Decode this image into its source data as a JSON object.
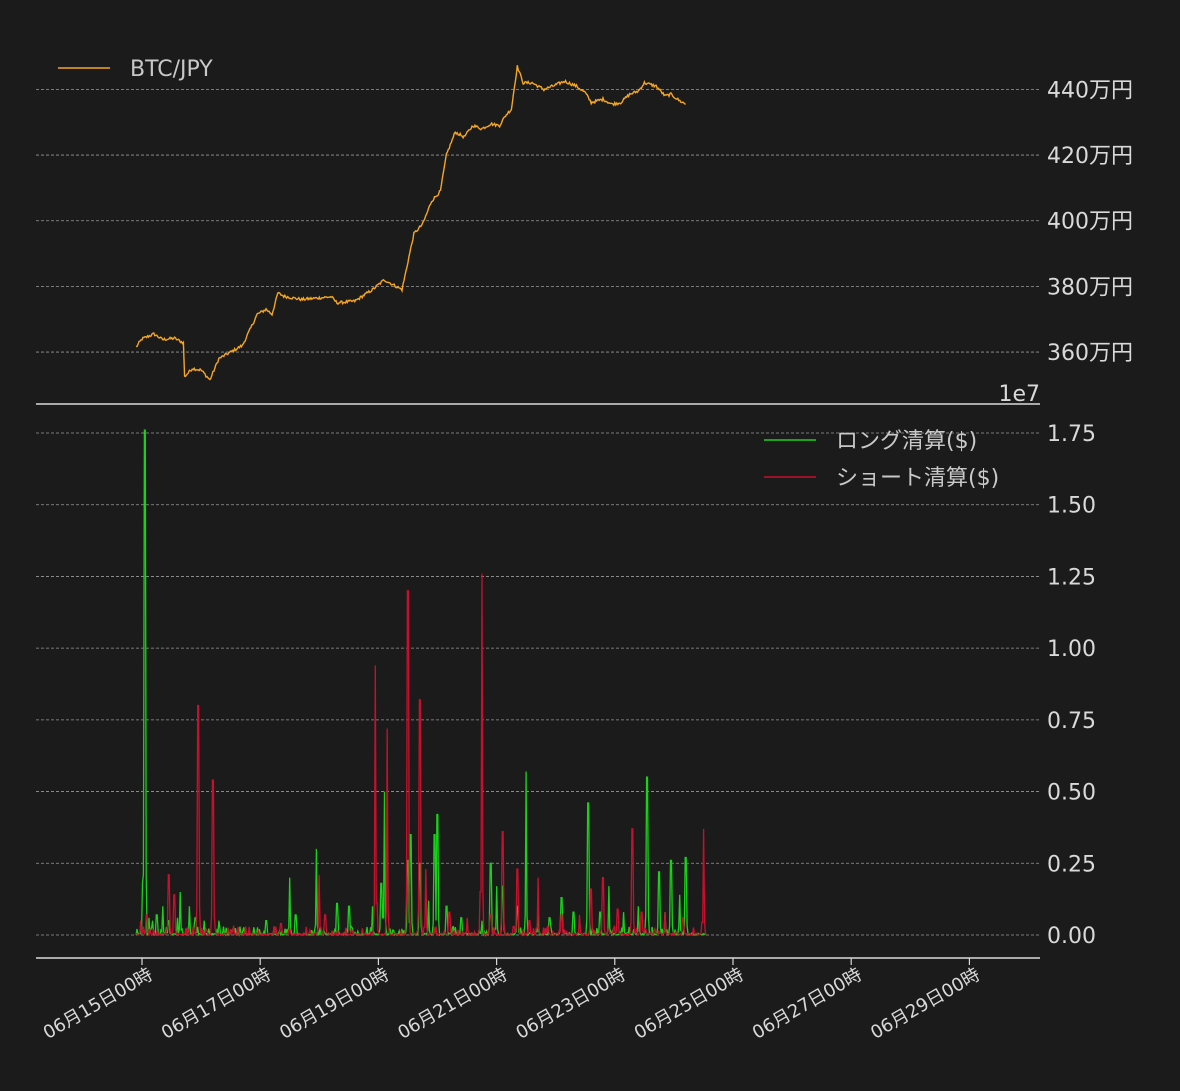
{
  "chart_data": [
    {
      "type": "line",
      "panel": "price",
      "series": [
        {
          "name": "BTC/JPY",
          "color": "#f5a623"
        }
      ],
      "ytick_labels": [
        "360万円",
        "380万円",
        "400万円",
        "420万円",
        "440万円"
      ],
      "yticks": [
        3600000,
        3800000,
        4000000,
        4200000,
        4400000
      ],
      "ylim": [
        3460000,
        4520000
      ],
      "legend_position": "top-left",
      "grid": true,
      "price_anchors": [
        [
          -0.1,
          3615000
        ],
        [
          0.0,
          3640000
        ],
        [
          0.2,
          3655000
        ],
        [
          0.35,
          3638000
        ],
        [
          0.55,
          3642000
        ],
        [
          0.7,
          3628000
        ],
        [
          0.72,
          3525000
        ],
        [
          0.85,
          3550000
        ],
        [
          1.0,
          3545000
        ],
        [
          1.15,
          3515000
        ],
        [
          1.3,
          3580000
        ],
        [
          1.5,
          3600000
        ],
        [
          1.7,
          3620000
        ],
        [
          1.95,
          3715000
        ],
        [
          2.1,
          3730000
        ],
        [
          2.2,
          3715000
        ],
        [
          2.3,
          3780000
        ],
        [
          2.4,
          3770000
        ],
        [
          2.7,
          3760000
        ],
        [
          3.0,
          3765000
        ],
        [
          3.2,
          3768000
        ],
        [
          3.3,
          3750000
        ],
        [
          3.6,
          3755000
        ],
        [
          3.9,
          3790000
        ],
        [
          4.1,
          3820000
        ],
        [
          4.25,
          3805000
        ],
        [
          4.4,
          3790000
        ],
        [
          4.6,
          3960000
        ],
        [
          4.75,
          3990000
        ],
        [
          4.9,
          4060000
        ],
        [
          5.05,
          4090000
        ],
        [
          5.15,
          4200000
        ],
        [
          5.3,
          4270000
        ],
        [
          5.45,
          4255000
        ],
        [
          5.6,
          4290000
        ],
        [
          5.75,
          4280000
        ],
        [
          5.9,
          4295000
        ],
        [
          6.05,
          4290000
        ],
        [
          6.15,
          4320000
        ],
        [
          6.25,
          4340000
        ],
        [
          6.35,
          4470000
        ],
        [
          6.45,
          4420000
        ],
        [
          6.6,
          4420000
        ],
        [
          6.8,
          4400000
        ],
        [
          6.95,
          4410000
        ],
        [
          7.15,
          4425000
        ],
        [
          7.35,
          4410000
        ],
        [
          7.5,
          4390000
        ],
        [
          7.6,
          4360000
        ],
        [
          7.8,
          4370000
        ],
        [
          7.95,
          4355000
        ],
        [
          8.1,
          4360000
        ],
        [
          8.25,
          4385000
        ],
        [
          8.4,
          4395000
        ],
        [
          8.5,
          4420000
        ],
        [
          8.7,
          4410000
        ],
        [
          8.85,
          4380000
        ],
        [
          8.95,
          4385000
        ],
        [
          9.1,
          4365000
        ],
        [
          9.2,
          4355000
        ]
      ]
    },
    {
      "type": "line",
      "panel": "liquidations",
      "offset_label": "1e7",
      "series": [
        {
          "name": "ロング清算($)",
          "color": "#19d219"
        },
        {
          "name": "ショート清算($)",
          "color": "#c8102e"
        }
      ],
      "ytick_labels": [
        "0.00",
        "0.25",
        "0.50",
        "0.75",
        "1.00",
        "1.25",
        "1.50",
        "1.75"
      ],
      "yticks": [
        0,
        0.25,
        0.5,
        0.75,
        1.0,
        1.25,
        1.5,
        1.75
      ],
      "ylim": [
        -0.08,
        1.8
      ],
      "legend_position": "top-right",
      "grid": true,
      "long_spikes": [
        [
          0.02,
          0.18
        ],
        [
          0.05,
          1.76
        ],
        [
          0.12,
          0.06
        ],
        [
          0.18,
          0.05
        ],
        [
          0.25,
          0.07
        ],
        [
          0.35,
          0.1
        ],
        [
          0.45,
          0.05
        ],
        [
          0.6,
          0.06
        ],
        [
          0.65,
          0.15
        ],
        [
          0.8,
          0.1
        ],
        [
          0.9,
          0.06
        ],
        [
          1.05,
          0.05
        ],
        [
          1.3,
          0.05
        ],
        [
          2.1,
          0.05
        ],
        [
          2.5,
          0.2
        ],
        [
          2.6,
          0.07
        ],
        [
          2.95,
          0.3
        ],
        [
          3.3,
          0.11
        ],
        [
          3.5,
          0.1
        ],
        [
          3.9,
          0.1
        ],
        [
          4.05,
          0.18
        ],
        [
          4.1,
          0.5
        ],
        [
          4.5,
          0.26
        ],
        [
          4.55,
          0.35
        ],
        [
          4.7,
          0.25
        ],
        [
          4.85,
          0.12
        ],
        [
          4.95,
          0.35
        ],
        [
          5.0,
          0.42
        ],
        [
          5.15,
          0.1
        ],
        [
          5.4,
          0.06
        ],
        [
          5.75,
          0.05
        ],
        [
          5.9,
          0.25
        ],
        [
          6.0,
          0.17
        ],
        [
          6.1,
          0.17
        ],
        [
          6.35,
          0.1
        ],
        [
          6.5,
          0.57
        ],
        [
          6.7,
          0.1
        ],
        [
          6.9,
          0.06
        ],
        [
          7.1,
          0.13
        ],
        [
          7.3,
          0.08
        ],
        [
          7.55,
          0.46
        ],
        [
          7.75,
          0.08
        ],
        [
          7.9,
          0.17
        ],
        [
          8.15,
          0.08
        ],
        [
          8.4,
          0.1
        ],
        [
          8.55,
          0.55
        ],
        [
          8.75,
          0.22
        ],
        [
          8.85,
          0.08
        ],
        [
          8.95,
          0.26
        ],
        [
          9.1,
          0.14
        ],
        [
          9.2,
          0.27
        ]
      ],
      "short_spikes": [
        [
          -0.02,
          0.05
        ],
        [
          0.08,
          0.07
        ],
        [
          0.45,
          0.21
        ],
        [
          0.55,
          0.14
        ],
        [
          0.95,
          0.8
        ],
        [
          1.2,
          0.54
        ],
        [
          2.35,
          0.04
        ],
        [
          3.0,
          0.21
        ],
        [
          3.1,
          0.07
        ],
        [
          3.95,
          0.94
        ],
        [
          4.15,
          0.72
        ],
        [
          4.5,
          1.2
        ],
        [
          4.7,
          0.82
        ],
        [
          4.8,
          0.23
        ],
        [
          5.2,
          0.08
        ],
        [
          5.5,
          0.06
        ],
        [
          5.75,
          1.26
        ],
        [
          5.9,
          0.07
        ],
        [
          6.1,
          0.36
        ],
        [
          6.35,
          0.23
        ],
        [
          6.55,
          0.05
        ],
        [
          6.7,
          0.2
        ],
        [
          7.1,
          0.07
        ],
        [
          7.4,
          0.07
        ],
        [
          7.6,
          0.16
        ],
        [
          7.8,
          0.2
        ],
        [
          8.05,
          0.09
        ],
        [
          8.3,
          0.37
        ],
        [
          8.45,
          0.08
        ],
        [
          8.85,
          0.08
        ],
        [
          9.15,
          0.06
        ],
        [
          9.5,
          0.37
        ]
      ]
    }
  ],
  "x_axis": {
    "type": "date",
    "tick_labels": [
      "06月15日00時",
      "06月17日00時",
      "06月19日00時",
      "06月21日00時",
      "06月23日00時",
      "06月25日00時",
      "06月27日00時",
      "06月29日00時"
    ],
    "tick_dates": [
      "06-15",
      "06-17",
      "06-19",
      "06-21",
      "06-23",
      "06-25",
      "06-27",
      "06-29"
    ],
    "range_dates": [
      "06-14",
      "06-29"
    ]
  }
}
